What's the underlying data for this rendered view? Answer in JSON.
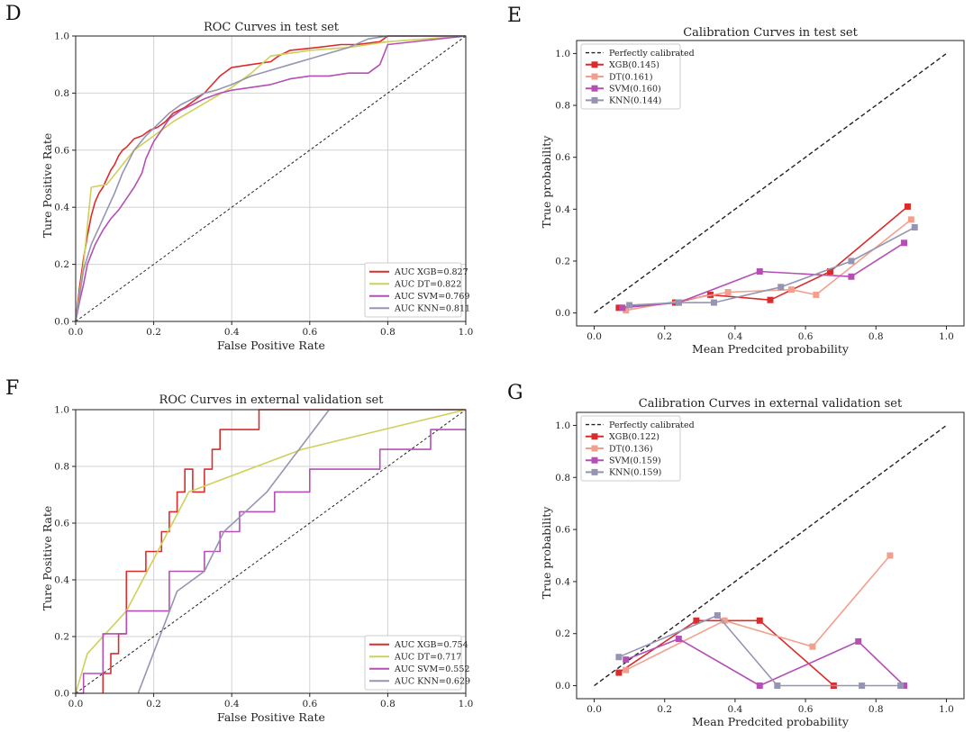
{
  "colors": {
    "xgb": "#d92d2d",
    "dt_roc": "#cfd05a",
    "dt_cal": "#f2a08e",
    "svm": "#b450b4",
    "knn": "#9595b3",
    "reference": "#222222"
  },
  "chart_data": [
    {
      "id": "D",
      "letter": "D",
      "type": "line",
      "title": "ROC Curves in test set",
      "xlabel": "False Positive Rate",
      "ylabel": "Ture Positive Rate",
      "xlim": [
        0,
        1
      ],
      "ylim": [
        0,
        1
      ],
      "ticks": [
        0.0,
        0.2,
        0.4,
        0.6,
        0.8,
        1.0
      ],
      "tick_labels": [
        "0.0",
        "0.2",
        "0.4",
        "0.6",
        "0.8",
        "1.0"
      ],
      "grid": true,
      "legend_position": "lower-right",
      "reference_line": true,
      "series": [
        {
          "name": "AUC XGB=0.827",
          "key": "xgb",
          "x": [
            0,
            0.01,
            0.02,
            0.03,
            0.04,
            0.05,
            0.06,
            0.07,
            0.08,
            0.09,
            0.1,
            0.11,
            0.12,
            0.13,
            0.15,
            0.17,
            0.19,
            0.21,
            0.23,
            0.25,
            0.28,
            0.3,
            0.33,
            0.35,
            0.37,
            0.4,
            0.45,
            0.5,
            0.52,
            0.55,
            0.62,
            0.68,
            0.72,
            0.78,
            0.8,
            1.0
          ],
          "y": [
            0,
            0.12,
            0.22,
            0.3,
            0.37,
            0.42,
            0.45,
            0.47,
            0.5,
            0.53,
            0.55,
            0.58,
            0.6,
            0.61,
            0.64,
            0.65,
            0.67,
            0.68,
            0.7,
            0.73,
            0.75,
            0.77,
            0.8,
            0.83,
            0.86,
            0.89,
            0.9,
            0.91,
            0.93,
            0.95,
            0.96,
            0.97,
            0.97,
            0.98,
            1.0,
            1.0
          ]
        },
        {
          "name": "AUC DT=0.822",
          "key": "dt_roc",
          "x": [
            0,
            0.02,
            0.04,
            0.08,
            0.15,
            0.2,
            0.25,
            0.3,
            0.35,
            0.4,
            0.45,
            0.5,
            0.6,
            0.7,
            0.8,
            1.0
          ],
          "y": [
            0,
            0.2,
            0.47,
            0.48,
            0.6,
            0.65,
            0.7,
            0.74,
            0.78,
            0.82,
            0.87,
            0.93,
            0.95,
            0.96,
            0.98,
            1.0
          ]
        },
        {
          "name": "AUC SVM=0.769",
          "key": "svm",
          "x": [
            0,
            0.01,
            0.02,
            0.03,
            0.05,
            0.07,
            0.09,
            0.11,
            0.13,
            0.15,
            0.17,
            0.18,
            0.2,
            0.22,
            0.24,
            0.27,
            0.3,
            0.33,
            0.37,
            0.4,
            0.45,
            0.5,
            0.55,
            0.6,
            0.65,
            0.7,
            0.75,
            0.78,
            0.8,
            1.0
          ],
          "y": [
            0,
            0.07,
            0.13,
            0.2,
            0.27,
            0.32,
            0.36,
            0.39,
            0.43,
            0.47,
            0.52,
            0.57,
            0.63,
            0.67,
            0.71,
            0.74,
            0.76,
            0.78,
            0.8,
            0.81,
            0.82,
            0.83,
            0.85,
            0.86,
            0.86,
            0.87,
            0.87,
            0.9,
            0.97,
            1.0
          ]
        },
        {
          "name": "AUC KNN=0.811",
          "key": "knn",
          "x": [
            0,
            0.02,
            0.04,
            0.06,
            0.08,
            0.1,
            0.12,
            0.15,
            0.18,
            0.21,
            0.24,
            0.27,
            0.3,
            0.33,
            0.36,
            0.4,
            0.45,
            0.5,
            0.55,
            0.6,
            0.65,
            0.7,
            0.75,
            0.8,
            1.0
          ],
          "y": [
            0,
            0.18,
            0.27,
            0.33,
            0.39,
            0.45,
            0.52,
            0.6,
            0.65,
            0.69,
            0.73,
            0.76,
            0.78,
            0.8,
            0.81,
            0.83,
            0.86,
            0.88,
            0.9,
            0.92,
            0.94,
            0.96,
            0.99,
            1.0,
            1.0
          ]
        }
      ]
    },
    {
      "id": "E",
      "letter": "E",
      "type": "line",
      "title": "Calibration Curves in test set",
      "xlabel": "Mean Predcited probability",
      "ylabel": "True probability",
      "xlim": [
        -0.05,
        1.05
      ],
      "ylim": [
        -0.05,
        1.05
      ],
      "ticks": [
        0.0,
        0.2,
        0.4,
        0.6,
        0.8,
        1.0
      ],
      "tick_labels": [
        "0.0",
        "0.2",
        "0.4",
        "0.6",
        "0.8",
        "1.0"
      ],
      "grid": false,
      "legend_position": "top-left",
      "reference_label": "Perfectly calibrated",
      "series": [
        {
          "name": "XGB(0.145)",
          "key": "xgb",
          "x": [
            0.07,
            0.23,
            0.33,
            0.5,
            0.67,
            0.89
          ],
          "y": [
            0.02,
            0.04,
            0.07,
            0.05,
            0.16,
            0.41
          ]
        },
        {
          "name": "DT(0.161)",
          "key": "dt_cal",
          "x": [
            0.09,
            0.38,
            0.56,
            0.63,
            0.9
          ],
          "y": [
            0.01,
            0.08,
            0.09,
            0.07,
            0.36
          ]
        },
        {
          "name": "SVM(0.160)",
          "key": "svm",
          "x": [
            0.08,
            0.24,
            0.47,
            0.73,
            0.88
          ],
          "y": [
            0.02,
            0.04,
            0.16,
            0.14,
            0.27
          ]
        },
        {
          "name": "KNN(0.144)",
          "key": "knn",
          "x": [
            0.1,
            0.24,
            0.34,
            0.53,
            0.73,
            0.91
          ],
          "y": [
            0.03,
            0.04,
            0.04,
            0.1,
            0.2,
            0.33
          ]
        }
      ]
    },
    {
      "id": "F",
      "letter": "F",
      "type": "line",
      "title": "ROC Curves in external validation set",
      "xlabel": "False Positive Rate",
      "ylabel": "Ture Positive Rate",
      "xlim": [
        0,
        1
      ],
      "ylim": [
        0,
        1
      ],
      "ticks": [
        0.0,
        0.2,
        0.4,
        0.6,
        0.8,
        1.0
      ],
      "tick_labels": [
        "0.0",
        "0.2",
        "0.4",
        "0.6",
        "0.8",
        "1.0"
      ],
      "grid": true,
      "legend_position": "lower-right",
      "reference_line": true,
      "series": [
        {
          "name": "AUC XGB=0.754",
          "key": "xgb",
          "x": [
            0.07,
            0.07,
            0.09,
            0.09,
            0.11,
            0.11,
            0.13,
            0.13,
            0.18,
            0.18,
            0.22,
            0.22,
            0.24,
            0.24,
            0.26,
            0.26,
            0.28,
            0.28,
            0.3,
            0.3,
            0.33,
            0.33,
            0.35,
            0.35,
            0.37,
            0.37,
            0.39,
            0.39,
            0.42,
            0.42,
            0.47,
            0.47,
            0.54,
            0.54,
            0.58,
            0.58,
            1.0
          ],
          "y": [
            0,
            0.07,
            0.07,
            0.14,
            0.14,
            0.21,
            0.21,
            0.43,
            0.43,
            0.5,
            0.5,
            0.57,
            0.57,
            0.64,
            0.64,
            0.71,
            0.71,
            0.79,
            0.79,
            0.71,
            0.71,
            0.79,
            0.79,
            0.86,
            0.86,
            0.93,
            0.93,
            0.93,
            0.93,
            0.93,
            0.93,
            1.0,
            1.0,
            1.0,
            1.0,
            1.0,
            1.0
          ]
        },
        {
          "name": "AUC DT=0.717",
          "key": "dt_roc",
          "x": [
            0,
            0.03,
            0.13,
            0.29,
            0.58,
            1.0
          ],
          "y": [
            0,
            0.14,
            0.29,
            0.71,
            0.86,
            1.0
          ]
        },
        {
          "name": "AUC SVM=0.552",
          "key": "svm",
          "x": [
            0,
            0.02,
            0.02,
            0.07,
            0.07,
            0.11,
            0.11,
            0.13,
            0.13,
            0.17,
            0.17,
            0.24,
            0.24,
            0.33,
            0.33,
            0.37,
            0.37,
            0.42,
            0.42,
            0.51,
            0.51,
            0.6,
            0.6,
            0.78,
            0.78,
            0.91,
            0.91,
            1.0
          ],
          "y": [
            0,
            0,
            0.07,
            0.07,
            0.21,
            0.21,
            0.21,
            0.21,
            0.29,
            0.29,
            0.29,
            0.29,
            0.43,
            0.43,
            0.5,
            0.5,
            0.57,
            0.57,
            0.64,
            0.64,
            0.71,
            0.71,
            0.79,
            0.79,
            0.86,
            0.86,
            0.93,
            0.93
          ]
        },
        {
          "name": "AUC KNN=0.629",
          "key": "knn",
          "x": [
            0.16,
            0.26,
            0.33,
            0.38,
            0.49,
            0.65,
            1.0
          ],
          "y": [
            0,
            0.36,
            0.43,
            0.57,
            0.71,
            1.0,
            1.0
          ]
        }
      ]
    },
    {
      "id": "G",
      "letter": "G",
      "type": "line",
      "title": "Calibration Curves in external validation set",
      "xlabel": "Mean Predcited probability",
      "ylabel": "True probability",
      "xlim": [
        -0.05,
        1.05
      ],
      "ylim": [
        -0.05,
        1.05
      ],
      "ticks": [
        0.0,
        0.2,
        0.4,
        0.6,
        0.8,
        1.0
      ],
      "tick_labels": [
        "0.0",
        "0.2",
        "0.4",
        "0.6",
        "0.8",
        "1.0"
      ],
      "grid": false,
      "legend_position": "top-left",
      "reference_label": "Perfectly calibrated",
      "series": [
        {
          "name": "XGB(0.122)",
          "key": "xgb",
          "x": [
            0.07,
            0.29,
            0.47,
            0.68
          ],
          "y": [
            0.05,
            0.25,
            0.25,
            0.0
          ]
        },
        {
          "name": "DT(0.136)",
          "key": "dt_cal",
          "x": [
            0.09,
            0.37,
            0.62,
            0.84
          ],
          "y": [
            0.06,
            0.25,
            0.15,
            0.5
          ]
        },
        {
          "name": "SVM(0.159)",
          "key": "svm",
          "x": [
            0.09,
            0.24,
            0.47,
            0.75,
            0.88
          ],
          "y": [
            0.1,
            0.18,
            0.0,
            0.17,
            0.0
          ]
        },
        {
          "name": "KNN(0.159)",
          "key": "knn",
          "x": [
            0.07,
            0.35,
            0.52,
            0.76,
            0.87
          ],
          "y": [
            0.11,
            0.27,
            0.0,
            0.0,
            0.0
          ]
        }
      ]
    }
  ]
}
